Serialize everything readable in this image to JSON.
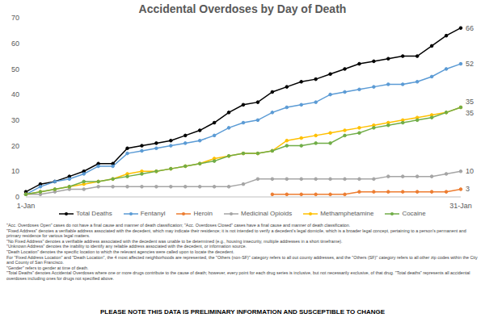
{
  "chart_data": {
    "type": "line",
    "title": "Accidental Overdoses by Day of Death",
    "categories": [
      "1-Jan",
      null,
      null,
      null,
      null,
      null,
      null,
      null,
      null,
      null,
      null,
      null,
      null,
      null,
      null,
      null,
      null,
      null,
      null,
      null,
      null,
      null,
      null,
      null,
      null,
      null,
      null,
      null,
      null,
      null,
      "31-Jan"
    ],
    "series": [
      {
        "name": "Total Deaths",
        "color": "#000000",
        "marker": "circle",
        "values": [
          2,
          5,
          6,
          8,
          10,
          13,
          13,
          19,
          20,
          21,
          22,
          24,
          26,
          29,
          33,
          36,
          37,
          41,
          43,
          45,
          46,
          48,
          50,
          52,
          53,
          54,
          55,
          55,
          59,
          63,
          66
        ],
        "value_labels": [
          null,
          null,
          null,
          null,
          null,
          null,
          null,
          null,
          null,
          null,
          null,
          null,
          null,
          null,
          null,
          null,
          null,
          null,
          null,
          null,
          null,
          null,
          null,
          null,
          null,
          null,
          null,
          null,
          null,
          null,
          "66"
        ]
      },
      {
        "name": "Fentanyl",
        "color": "#5b9bd5",
        "marker": "circle",
        "values": [
          1,
          4,
          6,
          7,
          9,
          12,
          12,
          17,
          18,
          19,
          20,
          21,
          22,
          24,
          27,
          29,
          30,
          33,
          35,
          36,
          37,
          40,
          41,
          42,
          43,
          44,
          44,
          45,
          47,
          50,
          52
        ],
        "value_labels": [
          null,
          null,
          null,
          null,
          null,
          null,
          null,
          null,
          null,
          null,
          null,
          null,
          null,
          null,
          null,
          null,
          null,
          null,
          null,
          null,
          null,
          null,
          null,
          null,
          null,
          null,
          null,
          null,
          null,
          null,
          "52"
        ]
      },
      {
        "name": "Heroin",
        "color": "#ed7d31",
        "marker": "circle",
        "values": [
          null,
          null,
          null,
          null,
          null,
          null,
          null,
          null,
          null,
          null,
          null,
          null,
          null,
          null,
          null,
          null,
          null,
          1,
          1,
          1,
          1,
          1,
          1,
          2,
          2,
          2,
          2,
          2,
          2,
          2,
          3
        ],
        "value_labels": [
          null,
          null,
          null,
          null,
          null,
          null,
          null,
          null,
          null,
          null,
          null,
          null,
          null,
          null,
          null,
          null,
          null,
          null,
          null,
          null,
          null,
          null,
          null,
          null,
          null,
          null,
          null,
          null,
          null,
          null,
          "3"
        ]
      },
      {
        "name": "Medicinal Opioids",
        "color": "#a5a5a5",
        "marker": "circle",
        "values": [
          1,
          1,
          2,
          3,
          3,
          4,
          4,
          4,
          4,
          4,
          4,
          4,
          4,
          4,
          4,
          5,
          7,
          7,
          7,
          7,
          7,
          7,
          7,
          7,
          7,
          8,
          8,
          8,
          8,
          9,
          10
        ],
        "value_labels": [
          null,
          null,
          null,
          null,
          null,
          null,
          null,
          null,
          null,
          null,
          null,
          null,
          null,
          null,
          null,
          null,
          null,
          null,
          null,
          null,
          null,
          null,
          null,
          null,
          null,
          null,
          null,
          null,
          null,
          null,
          "10"
        ]
      },
      {
        "name": "Methamphetamine",
        "color": "#ffc000",
        "marker": "circle",
        "values": [
          1,
          2,
          3,
          4,
          5,
          6,
          7,
          9,
          10,
          10,
          11,
          12,
          13,
          15,
          16,
          17,
          17,
          18,
          22,
          23,
          24,
          25,
          26,
          27,
          28,
          29,
          30,
          31,
          32,
          33,
          35
        ],
        "value_labels": [
          null,
          null,
          null,
          null,
          null,
          null,
          null,
          null,
          null,
          null,
          null,
          null,
          null,
          null,
          null,
          null,
          null,
          null,
          null,
          null,
          null,
          null,
          null,
          null,
          null,
          null,
          null,
          null,
          null,
          null,
          "35"
        ]
      },
      {
        "name": "Cocaine",
        "color": "#70ad47",
        "marker": "circle",
        "values": [
          1,
          2,
          3,
          4,
          6,
          6,
          7,
          8,
          9,
          10,
          11,
          12,
          13,
          14,
          16,
          17,
          17,
          18,
          20,
          20,
          21,
          21,
          24,
          25,
          27,
          28,
          29,
          30,
          31,
          33,
          35
        ],
        "value_labels": [
          null,
          null,
          null,
          null,
          null,
          null,
          null,
          null,
          null,
          null,
          null,
          null,
          null,
          null,
          null,
          null,
          null,
          null,
          null,
          null,
          null,
          null,
          null,
          null,
          null,
          null,
          null,
          null,
          null,
          null,
          "35"
        ]
      }
    ],
    "ylim": [
      0,
      70
    ],
    "yticks": [
      0,
      10,
      20,
      30,
      40,
      50,
      60,
      70
    ],
    "grid": false,
    "legend": "bottom",
    "notes": [
      "\"Acc. Overdoses Open\" cases do not have a final cause and manner of death classification; \"Acc. Overdoses Closed\" cases have a final cause and manner of death classification.",
      "\"Fixed Address\" denotes a verifiable address associated with the decedent, which may indicate their residence; it is not intended to verify a decedent's legal domicile, which is a broader legal concept, pertaining to a person's permanent and primary residence for various legal matters.",
      "\"No Fixed Address\" denotes a verifiable address associated with the decedent was unable to be determined (e.g., housing insecurity, multiple addresses in a short timeframe).",
      "\"Unknown Address\" denotes the inability to identify any reliable address associated with the decedent, or information source.",
      "\"Death Location\" denotes the specific location to which the relevant agencies were called upon to locate the decedent.",
      "For \"Fixed Address Location\" and \"Death Location\", the 4 most affected neighborhoods are represented, the \"Others (non-SF)\" category refers to all out county addresses, and the \"Others (SF)\" category refers to all other zip codes within the City and County of San Francisco.",
      "\"Gender\" refers to gender at time of death.",
      "\"Total Deaths\" denotes Accidental Overdoses where one or more drugs contribute to the cause of death; however, every point for each drug series is inclusive, but not necessarily exclusive, of that drug. \"Total deaths\" represents all accidental overdoses including ones for drugs not specified above."
    ],
    "footer": "PLEASE NOTE THIS DATA IS PRELIMINARY INFORMATION AND SUSCEPTIBLE TO CHANGE"
  }
}
